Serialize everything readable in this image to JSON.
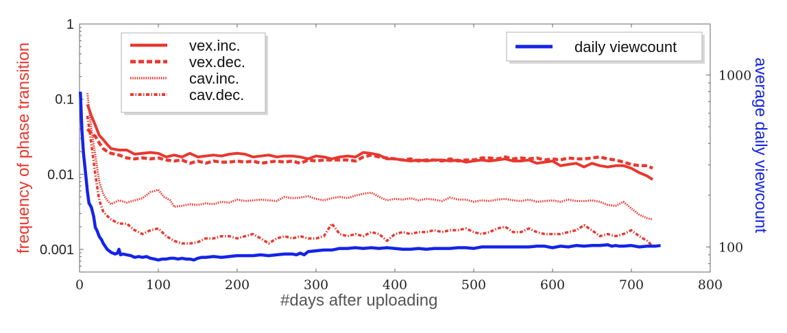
{
  "chart_data": {
    "type": "line",
    "xlabel": "#days after uploading",
    "ylabel_left": "frequency of phase transition",
    "ylabel_right": "average daily viewcount",
    "xlim": [
      0,
      800
    ],
    "ylim_left": [
      0.0005,
      1
    ],
    "ylim_right": [
      71.5,
      1980
    ],
    "yscale_left": "log",
    "yscale_right": "log",
    "xticks": [
      "0",
      "100",
      "200",
      "300",
      "400",
      "500",
      "600",
      "700",
      "800"
    ],
    "yticks_left": [
      "1",
      "0.1",
      "0.01",
      "0.001"
    ],
    "yticks_right": [
      "1000",
      "100"
    ],
    "legend_left_position": "top-left",
    "legend_right_position": "top-right",
    "colors": {
      "phase": "#e8382f",
      "viewcount": "#1424e8",
      "left_axis_label": "#e8382f",
      "right_axis_label": "#1424e8"
    },
    "series": [
      {
        "name": "vex.inc.",
        "axis": "left",
        "style": "solid",
        "x": [
          10,
          15,
          20,
          25,
          30,
          35,
          40,
          50,
          60,
          70,
          80,
          90,
          100,
          110,
          120,
          130,
          140,
          150,
          160,
          170,
          180,
          190,
          200,
          210,
          220,
          230,
          240,
          250,
          260,
          270,
          280,
          290,
          300,
          310,
          320,
          330,
          340,
          350,
          360,
          370,
          380,
          390,
          400,
          410,
          420,
          430,
          440,
          450,
          460,
          470,
          480,
          490,
          500,
          510,
          520,
          530,
          540,
          550,
          560,
          570,
          580,
          590,
          600,
          610,
          620,
          630,
          640,
          650,
          660,
          670,
          680,
          690,
          700,
          710,
          720,
          727
        ],
        "values": [
          0.085,
          0.06,
          0.045,
          0.033,
          0.029,
          0.025,
          0.022,
          0.021,
          0.021,
          0.0185,
          0.019,
          0.0195,
          0.019,
          0.017,
          0.018,
          0.017,
          0.019,
          0.017,
          0.0175,
          0.018,
          0.0175,
          0.0185,
          0.019,
          0.0185,
          0.017,
          0.0175,
          0.018,
          0.017,
          0.0175,
          0.0175,
          0.017,
          0.016,
          0.0175,
          0.017,
          0.016,
          0.017,
          0.0175,
          0.017,
          0.0195,
          0.019,
          0.018,
          0.016,
          0.016,
          0.0155,
          0.015,
          0.0155,
          0.015,
          0.0155,
          0.0155,
          0.015,
          0.0155,
          0.0145,
          0.015,
          0.0155,
          0.015,
          0.0155,
          0.016,
          0.015,
          0.015,
          0.0155,
          0.014,
          0.0145,
          0.015,
          0.013,
          0.0135,
          0.014,
          0.0125,
          0.014,
          0.013,
          0.0125,
          0.013,
          0.013,
          0.012,
          0.0105,
          0.0095,
          0.0085
        ]
      },
      {
        "name": "vex.dec.",
        "axis": "left",
        "style": "dashed",
        "x": [
          10,
          15,
          20,
          25,
          30,
          35,
          40,
          50,
          60,
          70,
          80,
          90,
          100,
          110,
          120,
          130,
          140,
          150,
          160,
          170,
          180,
          190,
          200,
          210,
          220,
          230,
          240,
          250,
          260,
          270,
          280,
          290,
          300,
          310,
          320,
          330,
          340,
          350,
          360,
          370,
          380,
          390,
          400,
          410,
          420,
          430,
          440,
          450,
          460,
          470,
          480,
          490,
          500,
          510,
          520,
          530,
          540,
          550,
          560,
          570,
          580,
          590,
          600,
          610,
          620,
          630,
          640,
          650,
          660,
          670,
          680,
          690,
          700,
          710,
          720,
          727
        ],
        "values": [
          0.04,
          0.035,
          0.032,
          0.026,
          0.022,
          0.02,
          0.019,
          0.018,
          0.0165,
          0.016,
          0.0165,
          0.016,
          0.0165,
          0.0155,
          0.015,
          0.0155,
          0.014,
          0.015,
          0.014,
          0.015,
          0.0145,
          0.0145,
          0.015,
          0.0145,
          0.015,
          0.014,
          0.0145,
          0.015,
          0.0145,
          0.015,
          0.014,
          0.0155,
          0.015,
          0.0155,
          0.0155,
          0.0155,
          0.0155,
          0.015,
          0.017,
          0.018,
          0.017,
          0.0165,
          0.016,
          0.0155,
          0.016,
          0.015,
          0.0155,
          0.0155,
          0.015,
          0.016,
          0.015,
          0.0155,
          0.0155,
          0.0165,
          0.0165,
          0.016,
          0.017,
          0.016,
          0.0165,
          0.016,
          0.0165,
          0.0155,
          0.016,
          0.0155,
          0.0165,
          0.016,
          0.016,
          0.0165,
          0.017,
          0.016,
          0.0155,
          0.0145,
          0.0135,
          0.013,
          0.013,
          0.012
        ]
      },
      {
        "name": "cav.inc.",
        "axis": "left",
        "style": "dotted",
        "x": [
          10,
          15,
          20,
          25,
          30,
          35,
          40,
          50,
          60,
          70,
          80,
          90,
          100,
          107,
          115,
          120,
          130,
          140,
          150,
          160,
          170,
          180,
          190,
          200,
          210,
          220,
          230,
          240,
          250,
          260,
          270,
          280,
          290,
          300,
          310,
          320,
          330,
          340,
          350,
          360,
          370,
          380,
          390,
          400,
          410,
          420,
          430,
          440,
          450,
          460,
          470,
          480,
          490,
          500,
          510,
          520,
          530,
          540,
          550,
          560,
          570,
          580,
          590,
          600,
          610,
          620,
          630,
          640,
          650,
          660,
          670,
          680,
          690,
          700,
          710,
          720,
          727
        ],
        "values": [
          0.12,
          0.04,
          0.018,
          0.008,
          0.0055,
          0.0045,
          0.004,
          0.0045,
          0.0042,
          0.0045,
          0.0048,
          0.0058,
          0.0062,
          0.005,
          0.0045,
          0.0037,
          0.0038,
          0.004,
          0.0039,
          0.0041,
          0.004,
          0.0043,
          0.0042,
          0.0046,
          0.0044,
          0.0045,
          0.0046,
          0.0045,
          0.0044,
          0.005,
          0.0048,
          0.0049,
          0.0051,
          0.0047,
          0.0045,
          0.0048,
          0.005,
          0.0048,
          0.0052,
          0.0055,
          0.0057,
          0.005,
          0.0045,
          0.0047,
          0.0046,
          0.0048,
          0.0045,
          0.0047,
          0.0046,
          0.0044,
          0.0049,
          0.0046,
          0.0046,
          0.0043,
          0.0045,
          0.0044,
          0.0046,
          0.0047,
          0.0045,
          0.0044,
          0.0046,
          0.0043,
          0.0044,
          0.0045,
          0.0043,
          0.0046,
          0.0044,
          0.0044,
          0.0045,
          0.0043,
          0.0039,
          0.0038,
          0.0043,
          0.0035,
          0.0029,
          0.0026,
          0.0025
        ]
      },
      {
        "name": "cav.dec.",
        "axis": "left",
        "style": "dashdot",
        "x": [
          10,
          15,
          20,
          25,
          30,
          35,
          40,
          50,
          60,
          70,
          80,
          90,
          100,
          110,
          120,
          130,
          140,
          150,
          160,
          170,
          180,
          190,
          200,
          210,
          220,
          230,
          240,
          250,
          260,
          270,
          280,
          290,
          300,
          310,
          320,
          330,
          340,
          350,
          360,
          370,
          380,
          390,
          400,
          410,
          420,
          430,
          440,
          450,
          460,
          470,
          480,
          490,
          500,
          510,
          520,
          530,
          540,
          550,
          560,
          570,
          580,
          590,
          600,
          610,
          620,
          630,
          640,
          650,
          660,
          670,
          680,
          690,
          700,
          710,
          720,
          727
        ],
        "values": [
          0.06,
          0.025,
          0.01,
          0.0045,
          0.0032,
          0.0028,
          0.0025,
          0.0022,
          0.0022,
          0.0018,
          0.0016,
          0.0018,
          0.0019,
          0.0015,
          0.0013,
          0.0012,
          0.0012,
          0.00125,
          0.0014,
          0.0014,
          0.0015,
          0.0015,
          0.0014,
          0.0015,
          0.0016,
          0.0014,
          0.0012,
          0.0014,
          0.0015,
          0.0014,
          0.0015,
          0.0014,
          0.0014,
          0.0015,
          0.0022,
          0.0016,
          0.0015,
          0.0016,
          0.0015,
          0.0017,
          0.0016,
          0.0013,
          0.0016,
          0.0017,
          0.0016,
          0.0017,
          0.0017,
          0.0018,
          0.0017,
          0.0018,
          0.0018,
          0.0019,
          0.0017,
          0.0016,
          0.0017,
          0.0019,
          0.002,
          0.0017,
          0.0017,
          0.0019,
          0.0017,
          0.0016,
          0.0016,
          0.0016,
          0.0017,
          0.0018,
          0.0021,
          0.0018,
          0.0015,
          0.0016,
          0.0015,
          0.0016,
          0.0018,
          0.0015,
          0.0013,
          0.0011
        ]
      },
      {
        "name": "daily viewcount",
        "axis": "right",
        "style": "solid",
        "x": [
          1,
          3,
          5,
          8,
          10,
          12,
          15,
          18,
          20,
          22,
          25,
          28,
          30,
          35,
          40,
          45,
          48,
          50,
          52,
          55,
          60,
          65,
          70,
          75,
          80,
          85,
          90,
          95,
          100,
          105,
          110,
          115,
          120,
          125,
          130,
          135,
          140,
          145,
          150,
          155,
          160,
          170,
          180,
          190,
          200,
          210,
          220,
          230,
          240,
          250,
          260,
          270,
          275,
          280,
          285,
          290,
          300,
          310,
          320,
          330,
          340,
          350,
          360,
          370,
          380,
          390,
          400,
          410,
          420,
          430,
          440,
          450,
          460,
          470,
          480,
          490,
          500,
          510,
          520,
          530,
          540,
          550,
          560,
          570,
          580,
          590,
          600,
          610,
          620,
          630,
          640,
          650,
          660,
          670,
          675,
          680,
          685,
          690,
          700,
          710,
          720,
          730,
          737
        ],
        "values": [
          800,
          480,
          350,
          260,
          210,
          180,
          170,
          150,
          130,
          125,
          115,
          110,
          105,
          97,
          93,
          91,
          92,
          97,
          90,
          91,
          90,
          89,
          87,
          88,
          87,
          88,
          86,
          85,
          84,
          85,
          85,
          86,
          86,
          85,
          86,
          85,
          85,
          84,
          86,
          87,
          87,
          88,
          87,
          88,
          89,
          89,
          89,
          90,
          89,
          90,
          91,
          91,
          90,
          92,
          90,
          94,
          95,
          96,
          96,
          98,
          98,
          99,
          98,
          99,
          98,
          99,
          98,
          97,
          97,
          98,
          97,
          98,
          98,
          98,
          99,
          99,
          98,
          100,
          100,
          100,
          100,
          100,
          100,
          100,
          101,
          101,
          99,
          101,
          100,
          102,
          101,
          102,
          102,
          103,
          101,
          102,
          101,
          101,
          102,
          100,
          101,
          101,
          102
        ]
      }
    ]
  }
}
